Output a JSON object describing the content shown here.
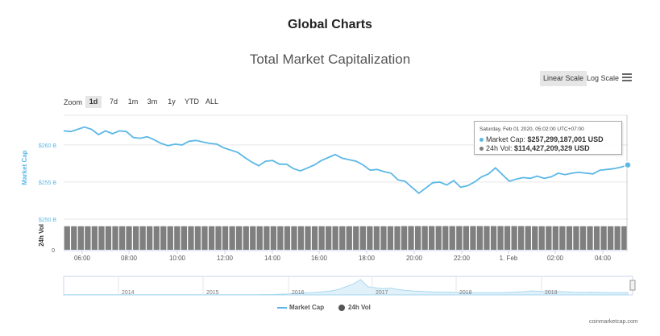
{
  "header": {
    "title": "Global Charts"
  },
  "chart_title": "Total Market Capitalization",
  "scale_buttons": {
    "linear": "Linear Scale",
    "log": "Log Scale",
    "active": "linear"
  },
  "zoom": {
    "label": "Zoom",
    "options": [
      "1d",
      "7d",
      "1m",
      "3m",
      "1y",
      "YTD",
      "ALL"
    ],
    "active": "1d"
  },
  "tooltip": {
    "date": "Saturday, Feb 01 2020, 05:02:00 UTC+07:00",
    "market_cap_label": "Market Cap:",
    "market_cap_value": "$257,299,187,001 USD",
    "volume_label": "24h Vol:",
    "volume_value": "$114,427,209,329 USD"
  },
  "legend": {
    "market_cap": "Market Cap",
    "volume": "24h Vol"
  },
  "credit": "coinmarketcap.com",
  "colors": {
    "market_cap": "#5cb8e6",
    "volume": "#7f7f7f",
    "navigator": "#a8d8f0"
  },
  "chart_data": {
    "type": "line",
    "market_cap": {
      "ylabel": "Market Cap",
      "yticks": [
        "$250 B",
        "$255 B",
        "$260 B"
      ],
      "ylim": [
        250,
        264
      ],
      "x": [
        "05:00",
        "05:20",
        "05:40",
        "06:00",
        "06:15",
        "06:30",
        "06:45",
        "07:00",
        "07:15",
        "07:30",
        "07:45",
        "08:00",
        "08:15",
        "08:30",
        "08:45",
        "09:00",
        "09:20",
        "09:40",
        "10:00",
        "10:15",
        "10:30",
        "10:45",
        "11:00",
        "11:20",
        "11:40",
        "12:00",
        "12:15",
        "12:30",
        "12:45",
        "13:00",
        "13:20",
        "13:40",
        "14:00",
        "14:20",
        "14:40",
        "15:00",
        "15:20",
        "15:40",
        "16:00",
        "16:20",
        "16:40",
        "17:00",
        "17:20",
        "17:40",
        "18:00",
        "18:20",
        "18:40",
        "19:00",
        "19:20",
        "19:40",
        "20:00",
        "20:15",
        "20:30",
        "20:45",
        "21:00",
        "21:15",
        "21:30",
        "21:45",
        "22:00",
        "22:15",
        "22:30",
        "22:45",
        "23:00",
        "23:15",
        "23:30",
        "23:45",
        "00:00",
        "00:20",
        "00:40",
        "01:00",
        "01:20",
        "01:40",
        "02:00",
        "02:20",
        "02:40",
        "03:00",
        "03:20",
        "03:40",
        "04:00",
        "04:20",
        "04:40",
        "05:00"
      ],
      "values": [
        261.9,
        261.8,
        262.1,
        262.4,
        262.1,
        261.4,
        261.9,
        261.5,
        261.9,
        261.8,
        261.0,
        260.9,
        261.1,
        260.7,
        260.2,
        259.9,
        260.1,
        260.0,
        260.5,
        260.6,
        260.4,
        260.2,
        260.1,
        259.6,
        259.3,
        259.0,
        258.3,
        257.7,
        257.2,
        257.8,
        257.9,
        257.4,
        257.4,
        256.8,
        256.5,
        256.9,
        257.3,
        257.9,
        258.3,
        258.7,
        258.2,
        258.0,
        257.8,
        257.3,
        256.6,
        256.7,
        256.4,
        256.2,
        255.3,
        255.1,
        254.3,
        253.5,
        254.2,
        254.9,
        255.0,
        254.6,
        255.2,
        254.3,
        254.5,
        255.0,
        255.7,
        256.1,
        256.9,
        256.0,
        255.1,
        255.4,
        255.6,
        255.5,
        255.8,
        255.5,
        255.7,
        256.2,
        256.0,
        256.2,
        256.3,
        256.2,
        256.1,
        256.6,
        256.7,
        256.8,
        257.0,
        257.3
      ]
    },
    "volume": {
      "ylabel": "24h Vol",
      "yticks": [
        "0"
      ],
      "values_billion": [
        114,
        114,
        114,
        114,
        114,
        114,
        114,
        114,
        114,
        114,
        114,
        114,
        114,
        114,
        114,
        114,
        114,
        114,
        114,
        114,
        114,
        114,
        114,
        114,
        114,
        114,
        114,
        114,
        114,
        114,
        114,
        114,
        114,
        114,
        114,
        114,
        114,
        114,
        114,
        114,
        114,
        114,
        114,
        114,
        114,
        114,
        114,
        114,
        114,
        115,
        115,
        115,
        115,
        115,
        115,
        115,
        115,
        115,
        115,
        115,
        115,
        115,
        115,
        115,
        115,
        115,
        115,
        115,
        114,
        114,
        114,
        114,
        114,
        114,
        114,
        114,
        114,
        114,
        114,
        114,
        114,
        114
      ]
    },
    "xticks": [
      "06:00",
      "08:00",
      "10:00",
      "12:00",
      "14:00",
      "16:00",
      "18:00",
      "20:00",
      "22:00",
      "1. Feb",
      "02:00",
      "04:00"
    ],
    "navigator": {
      "years": [
        "2014",
        "2015",
        "2016",
        "2017",
        "2018",
        "2019"
      ],
      "values": [
        1,
        1,
        1,
        1,
        1,
        1,
        1,
        1,
        1,
        1,
        1,
        1,
        1,
        1,
        1,
        1,
        1,
        1,
        1,
        1,
        1,
        1,
        1,
        1,
        1,
        1,
        1,
        2,
        2,
        3,
        5,
        8,
        10,
        12,
        14,
        18,
        22,
        30,
        45,
        60,
        85,
        45,
        40,
        35,
        38,
        30,
        25,
        22,
        20,
        18,
        16,
        15,
        15,
        14,
        13,
        12,
        12,
        12,
        12,
        12,
        14,
        16,
        18,
        22,
        20,
        18,
        16,
        18,
        16,
        14,
        14,
        15,
        14,
        13,
        12,
        12,
        12
      ]
    },
    "grid": true,
    "legend_position": "bottom-center"
  }
}
